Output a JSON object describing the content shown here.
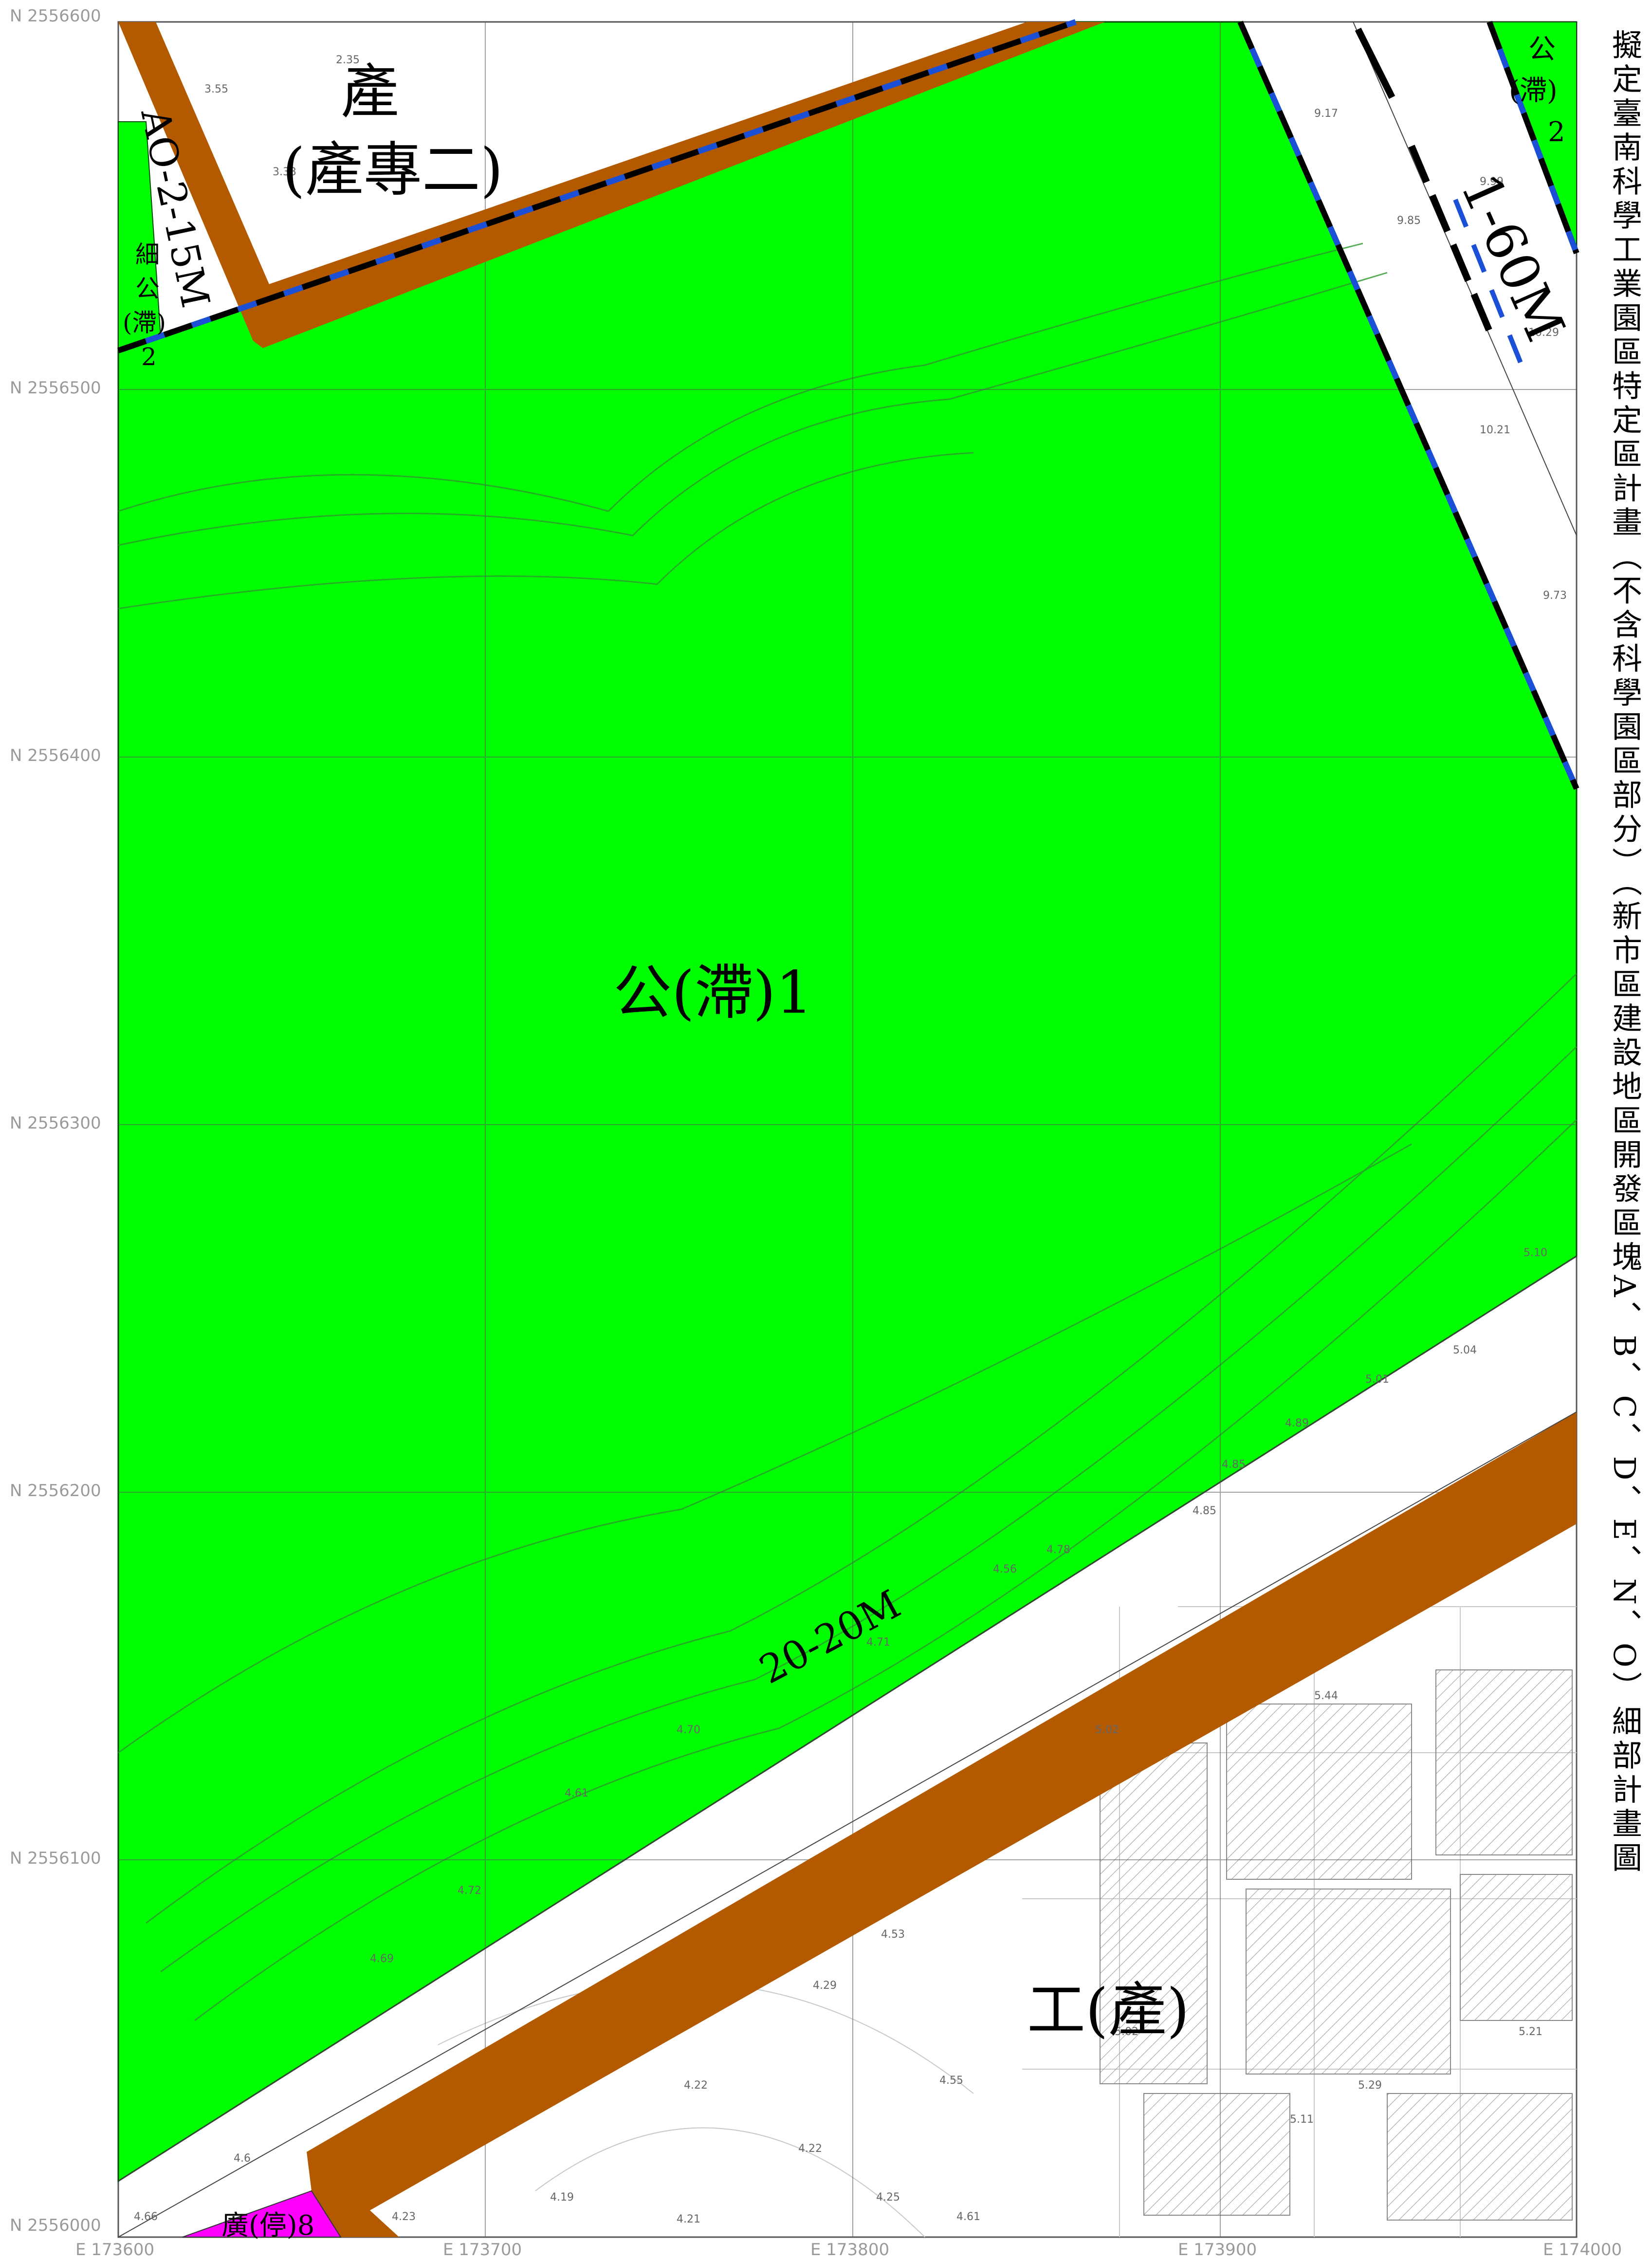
{
  "title": "擬定臺南科學工業園區特定區計畫（不含科學園區部分）（新市區建設地區開發區塊A、B、C、D、E、N、O）細部計畫圖",
  "coordinates": {
    "northing": [
      "N 2556600",
      "N 2556500",
      "N 2556400",
      "N 2556300",
      "N 2556200",
      "N 2556100",
      "N 2556000"
    ],
    "easting": [
      "E 173600",
      "E 173700",
      "E 173800",
      "E 173900",
      "E 174000"
    ]
  },
  "zones": {
    "park_detention_1": "公(滯)1",
    "industry_line1": "產",
    "industry_line2": "(產專二)",
    "industrial": "工(產)",
    "plaza_parking": "廣(停)8",
    "detail_park_lines": [
      "細",
      "公",
      "(滯)",
      "2"
    ],
    "park_top_right_lines": [
      "公",
      "(滯)",
      "2"
    ]
  },
  "roads": {
    "road_1_60m": "1-60M",
    "road_20_20m": "20-20M",
    "road_ao_2_15m": "AO-2-15M"
  },
  "elevations": [
    "2.35",
    "3.55",
    "3.33",
    "9.17",
    "9.99",
    "9.85",
    "10.29",
    "10.21",
    "9.73",
    "5.10",
    "5.04",
    "5.01",
    "4.89",
    "4.85",
    "4.78",
    "4.56",
    "4.71",
    "4.70",
    "4.61",
    "4.72",
    "4.69",
    "5.02",
    "5.44",
    "5.11",
    "5.21",
    "5.29",
    "5.02",
    "4.55",
    "4.53",
    "4.29",
    "4.22",
    "4.22",
    "4.25",
    "4.19",
    "4.21",
    "4.23",
    "4.66",
    "4.6",
    "4.61",
    "4.85"
  ],
  "colors": {
    "park_green": "#00ff00",
    "road_brown": "#b35a00",
    "plaza_magenta": "#ff00ff",
    "boundary_blue": "#1a4fd6",
    "boundary_black": "#000000"
  }
}
